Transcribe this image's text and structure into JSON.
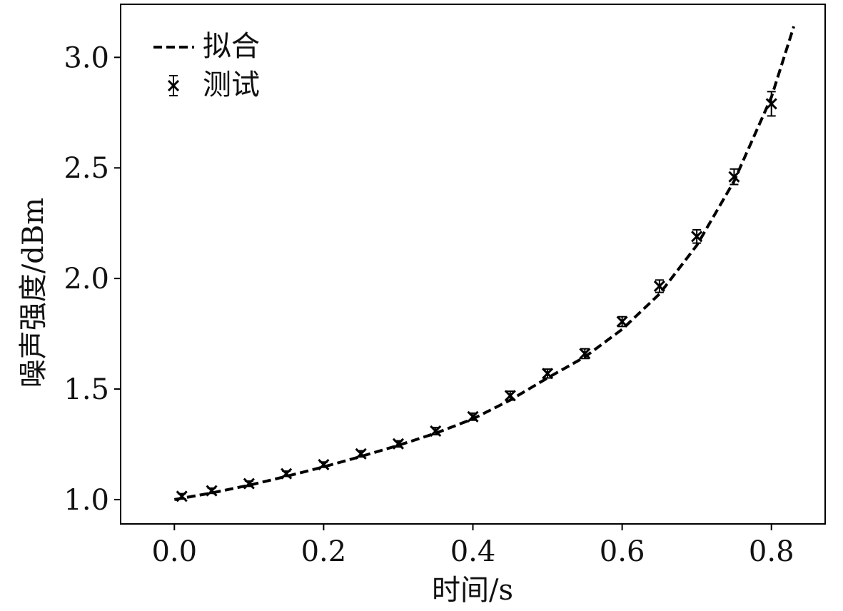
{
  "chart_data": {
    "type": "line",
    "title": "",
    "xlabel": "时间/s",
    "ylabel": "噪声强度/dBm",
    "xlim": [
      -0.072,
      0.872
    ],
    "ylim": [
      0.89,
      3.24
    ],
    "xticks": [
      "0.0",
      "0.2",
      "0.4",
      "0.6",
      "0.8"
    ],
    "yticks": [
      "1.0",
      "1.5",
      "2.0",
      "2.5",
      "3.0"
    ],
    "grid": false,
    "legend_position": "top-left",
    "colors": {
      "line": "#000000",
      "marker": "#000000",
      "frame": "#000000"
    },
    "series": [
      {
        "name": "拟合",
        "style": "dashed",
        "x": [
          0.0,
          0.05,
          0.1,
          0.15,
          0.2,
          0.25,
          0.3,
          0.35,
          0.4,
          0.45,
          0.5,
          0.55,
          0.6,
          0.65,
          0.7,
          0.75,
          0.8,
          0.83
        ],
        "y": [
          1.0,
          1.03,
          1.065,
          1.105,
          1.148,
          1.195,
          1.245,
          1.3,
          1.365,
          1.45,
          1.55,
          1.645,
          1.77,
          1.93,
          2.15,
          2.44,
          2.82,
          3.14
        ]
      },
      {
        "name": "测试",
        "style": "errorbar",
        "marker": "x",
        "x": [
          0.01,
          0.05,
          0.1,
          0.15,
          0.2,
          0.25,
          0.3,
          0.35,
          0.4,
          0.45,
          0.5,
          0.55,
          0.6,
          0.65,
          0.7,
          0.75,
          0.8
        ],
        "y": [
          1.015,
          1.04,
          1.072,
          1.117,
          1.158,
          1.207,
          1.252,
          1.31,
          1.375,
          1.47,
          1.57,
          1.66,
          1.805,
          1.965,
          2.19,
          2.46,
          2.79
        ],
        "yerr": [
          0.012,
          0.012,
          0.012,
          0.012,
          0.012,
          0.014,
          0.014,
          0.016,
          0.016,
          0.02,
          0.02,
          0.022,
          0.022,
          0.028,
          0.03,
          0.035,
          0.055
        ]
      }
    ]
  }
}
